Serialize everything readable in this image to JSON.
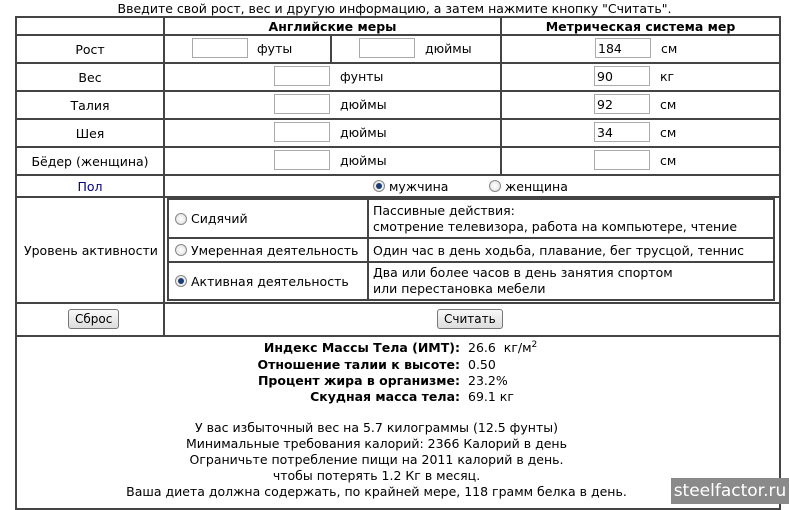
{
  "intro": "Введите свой рост, вес и другую информацию, а затем нажмите кнопку \"Считать\".",
  "headers": {
    "english": "Английские меры",
    "metric": "Метрическая система мер"
  },
  "rows": {
    "height": {
      "label": "Рост",
      "unit_ft": "футы",
      "unit_in": "дюймы",
      "metric_value": "184",
      "metric_unit": "см"
    },
    "weight": {
      "label": "Вес",
      "unit_en": "фунты",
      "metric_value": "90",
      "metric_unit": "кг"
    },
    "waist": {
      "label": "Талия",
      "unit_en": "дюймы",
      "metric_value": "92",
      "metric_unit": "см"
    },
    "neck": {
      "label": "Шея",
      "unit_en": "дюймы",
      "metric_value": "34",
      "metric_unit": "см"
    },
    "hip": {
      "label": "Бёдер (женщина)",
      "unit_en": "дюймы",
      "metric_value": "",
      "metric_unit": "см"
    }
  },
  "sex": {
    "label": "Пол",
    "male": "мужчина",
    "female": "женщина",
    "selected": "male",
    "label_color": "#000080"
  },
  "activity": {
    "label": "Уровень активности",
    "selected": "active",
    "options": [
      {
        "label": "Сидячий",
        "desc1": "Пассивные действия:",
        "desc2": "смотрение телевизора, работа на компьютере, чтение"
      },
      {
        "label": "Умеренная деятельность",
        "desc1": "Один час в день ходьба, плавание, бег трусцой, теннис",
        "desc2": ""
      },
      {
        "label": "Активная деятельность",
        "desc1": "Два или более часов в день занятия спортом",
        "desc2": "или перестановка мебели"
      }
    ]
  },
  "buttons": {
    "reset": "Сброс",
    "calc": "Считать"
  },
  "results": {
    "bmi_label": "Индекс Массы Тела (ИМТ):",
    "bmi_value": "26.6  кг/м",
    "bmi_sup": "2",
    "whr_label": "Отношение талии к высоте:",
    "whr_value": "0.50",
    "fat_label": "Процент жира в организме:",
    "fat_value": "23.2%",
    "lean_label": "Скудная масса тела:",
    "lean_value": "69.1 кг",
    "line1": "У вас избыточный вес на 5.7 килограммы (12.5 фунты)",
    "line2": "Минимальные требования калорий: 2366 Калорий в день",
    "line3": "Ограничьте потребление пищи на 2011 калорий в день.",
    "line4": "чтобы потерять 1.2 Кг в месяц.",
    "line5": "Ваша диета должна содержать, по крайней мере, 118 грамм белка в день."
  },
  "watermark": "steelfactor.ru"
}
